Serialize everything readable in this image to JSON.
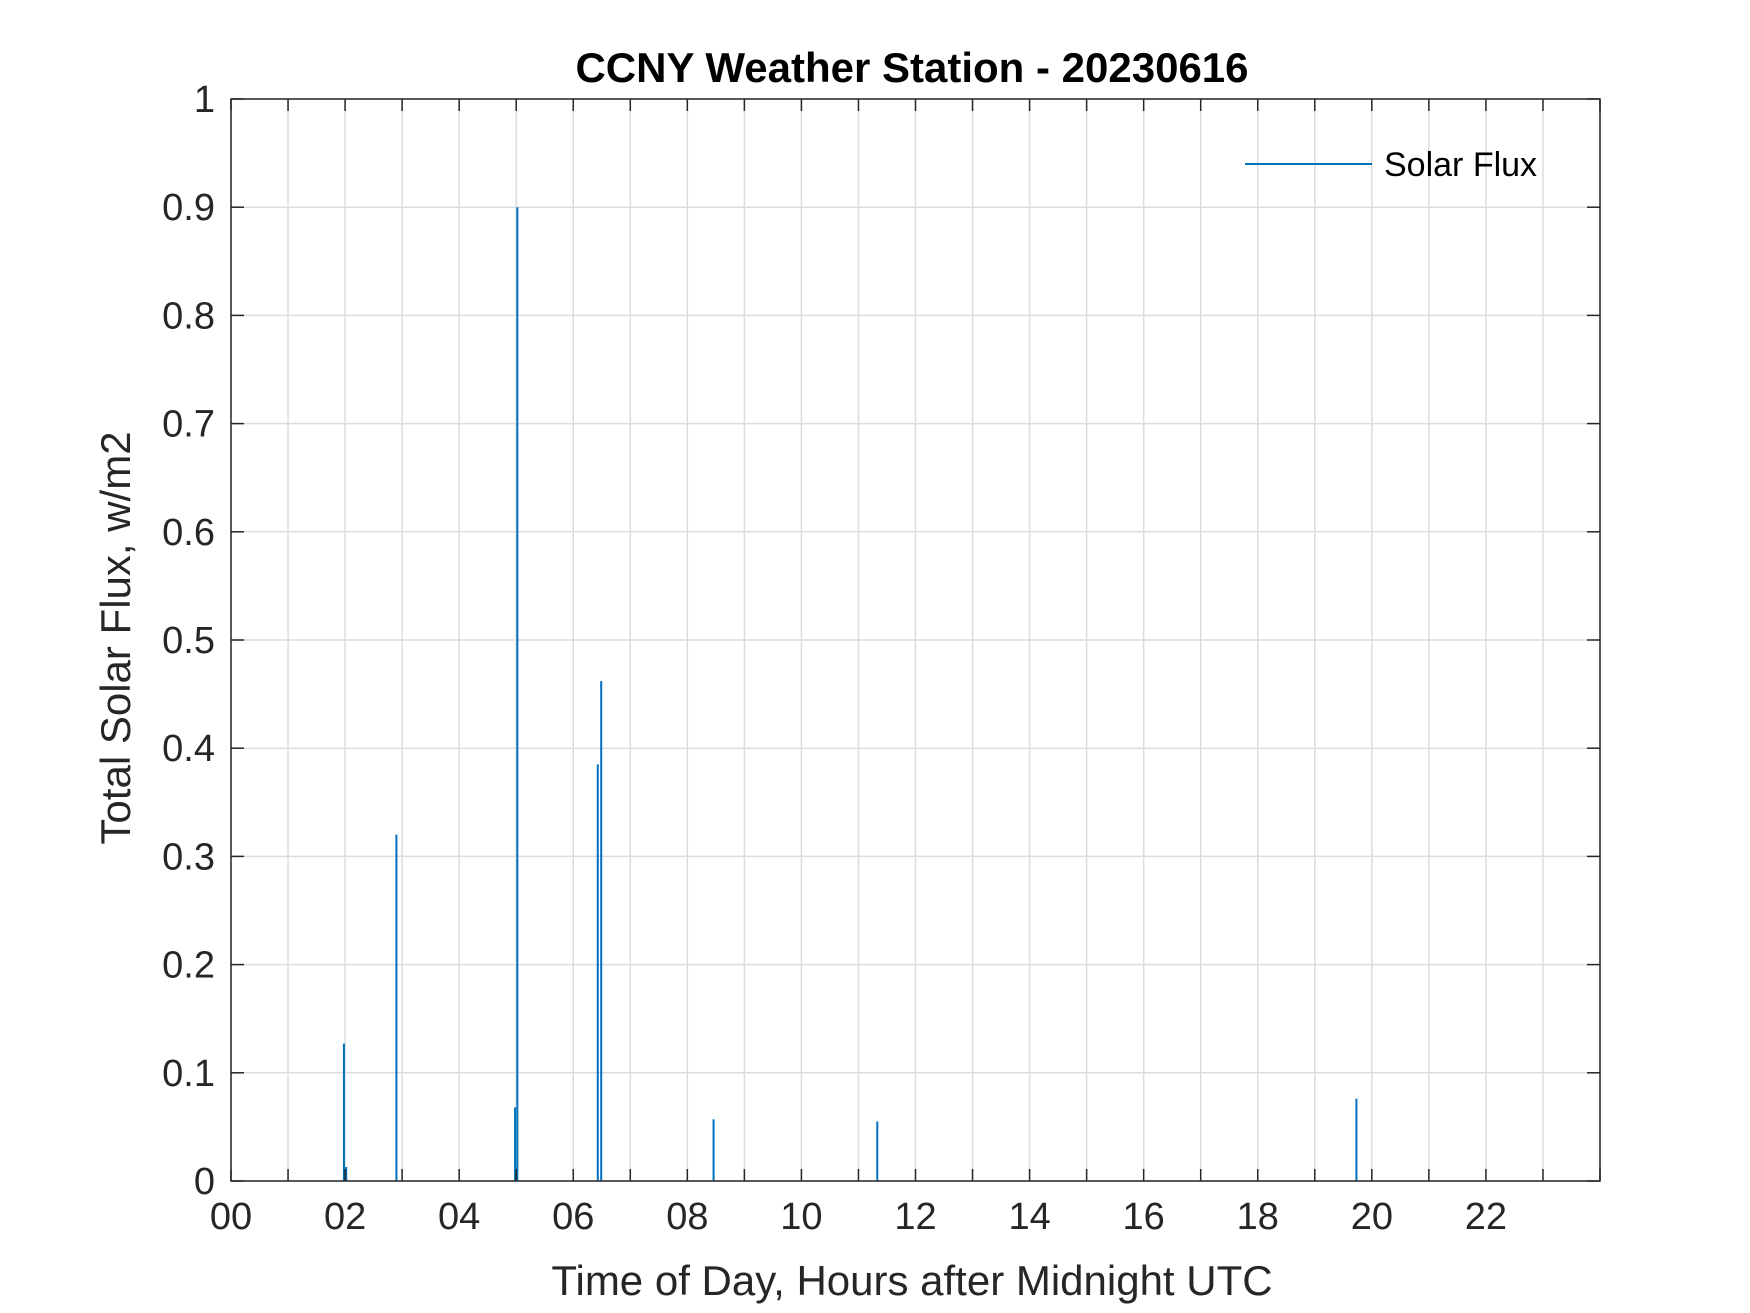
{
  "chart_data": {
    "type": "line",
    "title": "CCNY Weather Station - 20230616",
    "xlabel": "Time of Day, Hours after Midnight UTC",
    "ylabel": "Total Solar Flux, w/m2",
    "xlim": [
      0,
      24
    ],
    "ylim": [
      0,
      1
    ],
    "x_ticks": [
      0,
      2,
      4,
      6,
      8,
      10,
      12,
      14,
      16,
      18,
      20,
      22
    ],
    "x_tick_labels": [
      "00",
      "02",
      "04",
      "06",
      "08",
      "10",
      "12",
      "14",
      "16",
      "18",
      "20",
      "22"
    ],
    "x_minor_grid_step": 1,
    "y_ticks": [
      0,
      0.1,
      0.2,
      0.3,
      0.4,
      0.5,
      0.6,
      0.7,
      0.8,
      0.9,
      1
    ],
    "y_tick_labels": [
      "0",
      "0.1",
      "0.2",
      "0.3",
      "0.4",
      "0.5",
      "0.6",
      "0.7",
      "0.8",
      "0.9",
      "1"
    ],
    "grid": true,
    "legend_position": "top-right",
    "series": [
      {
        "name": "Solar Flux",
        "color": "#0072BD",
        "spikes": [
          {
            "x": 1.98,
            "y": 0.127
          },
          {
            "x": 2.02,
            "y": 0.013
          },
          {
            "x": 2.9,
            "y": 0.32
          },
          {
            "x": 4.98,
            "y": 0.068
          },
          {
            "x": 5.02,
            "y": 0.9
          },
          {
            "x": 6.43,
            "y": 0.385
          },
          {
            "x": 6.49,
            "y": 0.462
          },
          {
            "x": 8.46,
            "y": 0.057
          },
          {
            "x": 11.33,
            "y": 0.055
          },
          {
            "x": 19.73,
            "y": 0.076
          }
        ]
      }
    ]
  }
}
